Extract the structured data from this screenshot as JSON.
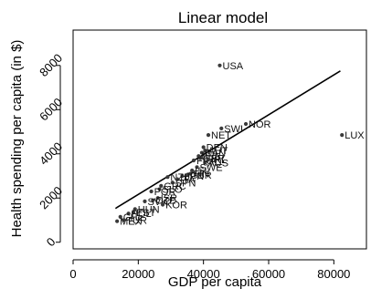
{
  "chart_data": {
    "type": "scatter",
    "title": "Linear model",
    "xlabel": "GDP per capita",
    "ylabel": "Health spending per capita (in $)",
    "xlim": [
      0,
      90000
    ],
    "ylim": [
      -300,
      9600
    ],
    "xticks": [
      0,
      20000,
      40000,
      60000,
      80000
    ],
    "yticks": [
      0,
      2000,
      4000,
      6000,
      8000
    ],
    "grid": false,
    "fit_line": {
      "x1": 13000,
      "y1": 1530,
      "x2": 82000,
      "y2": 7750
    },
    "labeled_points": [
      {
        "label": "USA",
        "x": 45000,
        "y": 8000
      },
      {
        "label": "LUX",
        "x": 82500,
        "y": 4850
      },
      {
        "label": "NOR",
        "x": 53000,
        "y": 5350
      },
      {
        "label": "SWI",
        "x": 45500,
        "y": 5150
      },
      {
        "label": "NET",
        "x": 41500,
        "y": 4850
      },
      {
        "label": "DEN",
        "x": 40000,
        "y": 4300
      },
      {
        "label": "AUT",
        "x": 40500,
        "y": 4150
      },
      {
        "label": "CAN",
        "x": 39500,
        "y": 4050
      },
      {
        "label": "BEL",
        "x": 38500,
        "y": 3900
      },
      {
        "label": "GER",
        "x": 39000,
        "y": 3800
      },
      {
        "label": "AUS",
        "x": 40500,
        "y": 3600
      },
      {
        "label": "FRA",
        "x": 37000,
        "y": 3700
      },
      {
        "label": "IRL",
        "x": 41500,
        "y": 3750
      },
      {
        "label": "SWE",
        "x": 38000,
        "y": 3400
      },
      {
        "label": "ISL",
        "x": 36500,
        "y": 3250
      },
      {
        "label": "FIN",
        "x": 36000,
        "y": 3100
      },
      {
        "label": "GBR",
        "x": 35000,
        "y": 3050
      },
      {
        "label": "JPN",
        "x": 33500,
        "y": 3000
      },
      {
        "label": "NZL",
        "x": 29000,
        "y": 2950
      },
      {
        "label": "ITA",
        "x": 32000,
        "y": 2850
      },
      {
        "label": "SPN",
        "x": 30500,
        "y": 2700
      },
      {
        "label": "GRC",
        "x": 27000,
        "y": 2550
      },
      {
        "label": "SLO",
        "x": 26500,
        "y": 2400
      },
      {
        "label": "POR",
        "x": 24000,
        "y": 2300
      },
      {
        "label": "ISR",
        "x": 26000,
        "y": 2000
      },
      {
        "label": "CZE",
        "x": 24500,
        "y": 1900
      },
      {
        "label": "SVK",
        "x": 22000,
        "y": 1850
      },
      {
        "label": "KOR",
        "x": 27500,
        "y": 1700
      },
      {
        "label": "HUN",
        "x": 19000,
        "y": 1500
      },
      {
        "label": "EST",
        "x": 18500,
        "y": 1350
      },
      {
        "label": "POL",
        "x": 17000,
        "y": 1300
      },
      {
        "label": "CHL",
        "x": 14500,
        "y": 1150
      },
      {
        "label": "TUR",
        "x": 15500,
        "y": 1000
      },
      {
        "label": "MEX",
        "x": 13500,
        "y": 950
      }
    ]
  }
}
